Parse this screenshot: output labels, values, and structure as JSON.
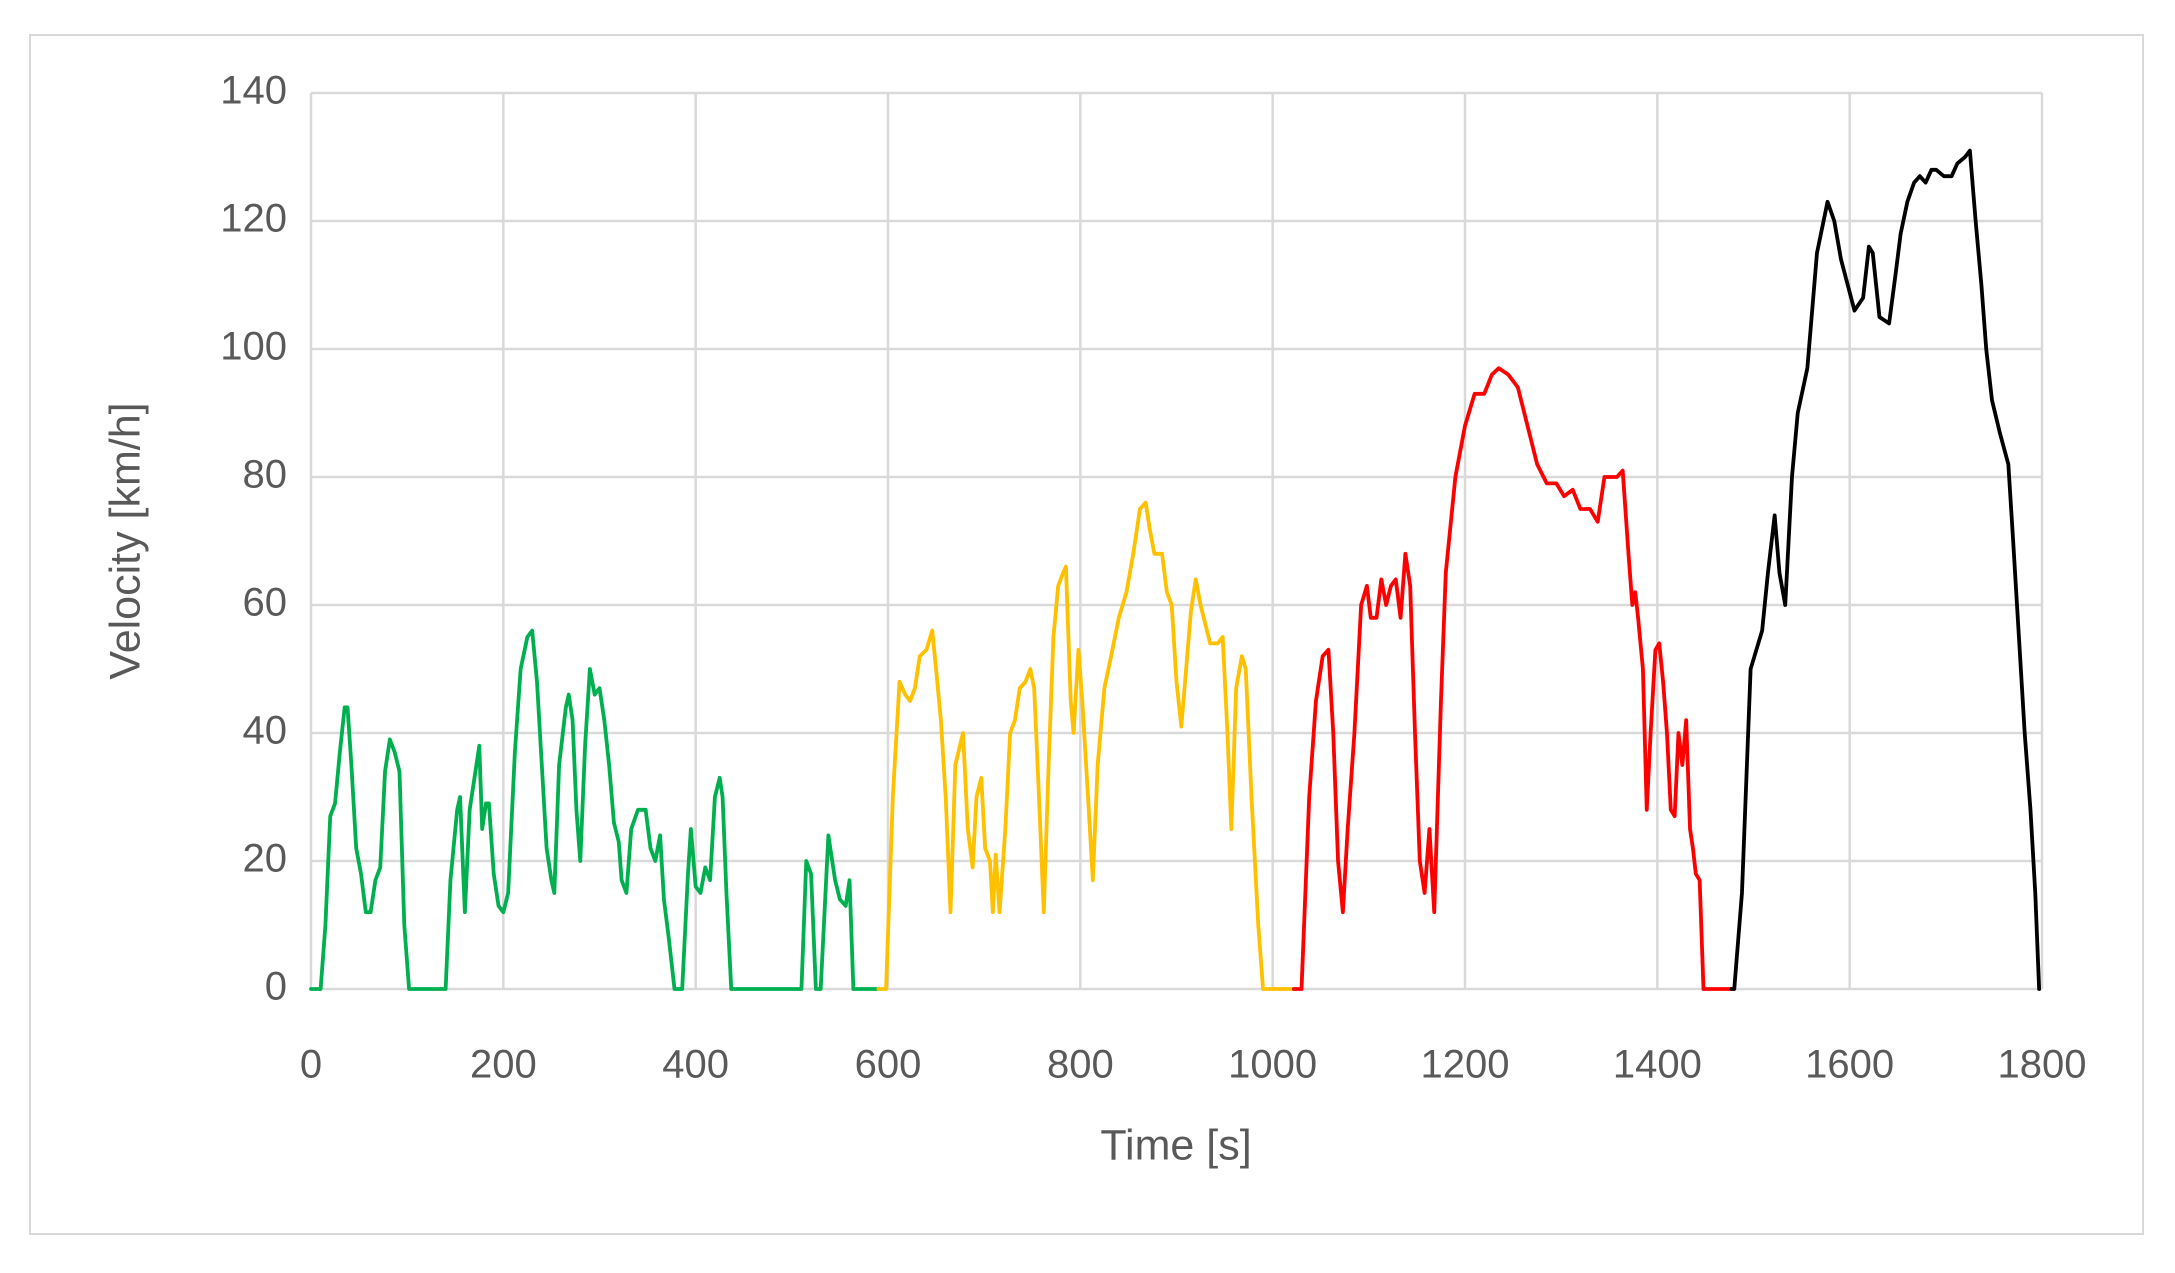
{
  "chart_data": {
    "type": "line",
    "xlabel": "Time [s]",
    "ylabel": "Velocity [km/h]",
    "xlim": [
      0,
      1800
    ],
    "xticks": [
      0,
      200,
      400,
      600,
      800,
      1000,
      1200,
      1400,
      1600,
      1800
    ],
    "ylim": [
      0,
      140
    ],
    "yticks": [
      0,
      20,
      40,
      60,
      80,
      100,
      120,
      140
    ],
    "grid": true,
    "series": [
      {
        "color": "#00b050",
        "x": [
          0,
          10,
          15,
          20,
          25,
          30,
          35,
          38,
          42,
          47,
          52,
          57,
          62,
          67,
          72,
          77,
          82,
          87,
          92,
          97,
          102,
          140,
          145,
          152,
          155,
          160,
          165,
          170,
          175,
          178,
          182,
          185,
          190,
          195,
          200,
          205,
          212,
          218,
          225,
          230,
          235,
          240,
          245,
          250,
          253,
          258,
          265,
          268,
          272,
          276,
          280,
          285,
          290,
          295,
          300,
          305,
          310,
          315,
          320,
          323,
          328,
          333,
          340,
          348,
          353,
          358,
          363,
          367,
          372,
          378,
          386,
          392,
          395,
          400,
          405,
          410,
          415,
          420,
          425,
          428,
          432,
          437,
          510,
          515,
          520,
          525,
          530,
          538,
          545,
          550,
          556,
          560,
          564,
          590
        ],
        "values": [
          0,
          0,
          10,
          27,
          29,
          37,
          44,
          44,
          35,
          22,
          18,
          12,
          12,
          17,
          19,
          34,
          39,
          37,
          34,
          10,
          0,
          0,
          17,
          28,
          30,
          12,
          28,
          33,
          38,
          25,
          29,
          29,
          18,
          13,
          12,
          15,
          37,
          50,
          55,
          56,
          48,
          35,
          22,
          17,
          15,
          35,
          44,
          46,
          42,
          28,
          20,
          38,
          50,
          46,
          47,
          42,
          35,
          26,
          23,
          17,
          15,
          25,
          28,
          28,
          22,
          20,
          24,
          14,
          8,
          0,
          0,
          18,
          25,
          16,
          15,
          19,
          17,
          30,
          33,
          30,
          15,
          0,
          0,
          20,
          18,
          0,
          0,
          24,
          17,
          14,
          13,
          17,
          0,
          0
        ]
      },
      {
        "color": "#ffc000",
        "x": [
          590,
          598,
          605,
          612,
          618,
          623,
          628,
          633,
          640,
          646,
          650,
          655,
          660,
          665,
          670,
          678,
          683,
          688,
          692,
          697,
          701,
          706,
          709,
          712,
          716,
          722,
          727,
          732,
          737,
          743,
          748,
          752,
          757,
          762,
          767,
          772,
          777,
          782,
          785,
          790,
          793,
          798,
          802,
          808,
          813,
          818,
          825,
          832,
          840,
          848,
          855,
          862,
          868,
          872,
          877,
          885,
          890,
          895,
          900,
          905,
          910,
          915,
          920,
          925,
          930,
          935,
          943,
          948,
          953,
          957,
          962,
          968,
          972,
          978,
          985,
          990,
          1022
        ],
        "values": [
          0,
          0,
          30,
          48,
          46,
          45,
          47,
          52,
          53,
          56,
          50,
          42,
          30,
          12,
          35,
          40,
          25,
          19,
          30,
          33,
          22,
          20,
          12,
          21,
          12,
          25,
          40,
          42,
          47,
          48,
          50,
          47,
          30,
          12,
          35,
          55,
          63,
          65,
          66,
          45,
          40,
          53,
          45,
          30,
          17,
          35,
          47,
          52,
          58,
          62,
          68,
          75,
          76,
          72,
          68,
          68,
          62,
          60,
          48,
          41,
          50,
          59,
          64,
          60,
          57,
          54,
          54,
          55,
          40,
          25,
          47,
          52,
          50,
          30,
          10,
          0,
          0
        ]
      },
      {
        "color": "#ff0000",
        "x": [
          1022,
          1030,
          1038,
          1045,
          1052,
          1058,
          1063,
          1068,
          1073,
          1078,
          1085,
          1092,
          1098,
          1102,
          1108,
          1113,
          1118,
          1123,
          1128,
          1133,
          1138,
          1143,
          1148,
          1153,
          1158,
          1163,
          1168,
          1175,
          1180,
          1190,
          1200,
          1210,
          1220,
          1228,
          1235,
          1245,
          1255,
          1265,
          1275,
          1285,
          1295,
          1303,
          1312,
          1320,
          1330,
          1338,
          1345,
          1352,
          1358,
          1364,
          1370,
          1374,
          1377,
          1380,
          1385,
          1389,
          1393,
          1398,
          1402,
          1406,
          1410,
          1414,
          1418,
          1422,
          1426,
          1430,
          1434,
          1437,
          1440,
          1444,
          1448,
          1477
        ],
        "values": [
          0,
          0,
          30,
          45,
          52,
          53,
          40,
          20,
          12,
          25,
          40,
          60,
          63,
          58,
          58,
          64,
          60,
          63,
          64,
          58,
          68,
          63,
          40,
          20,
          15,
          25,
          12,
          45,
          65,
          80,
          88,
          93,
          93,
          96,
          97,
          96,
          94,
          88,
          82,
          79,
          79,
          77,
          78,
          75,
          75,
          73,
          80,
          80,
          80,
          81,
          68,
          60,
          62,
          58,
          50,
          28,
          40,
          53,
          54,
          48,
          40,
          28,
          27,
          40,
          35,
          42,
          25,
          22,
          18,
          17,
          0,
          0
        ]
      },
      {
        "color": "#000000",
        "x": [
          1477,
          1480,
          1488,
          1497,
          1509,
          1515,
          1522,
          1527,
          1533,
          1540,
          1546,
          1556,
          1566,
          1577,
          1584,
          1591,
          1598,
          1605,
          1614,
          1620,
          1624,
          1631,
          1641,
          1648,
          1653,
          1660,
          1667,
          1673,
          1679,
          1685,
          1690,
          1698,
          1706,
          1712,
          1720,
          1725,
          1731,
          1737,
          1742,
          1748,
          1756,
          1765,
          1770,
          1776,
          1782,
          1788,
          1793,
          1797
        ],
        "values": [
          0,
          0,
          15,
          50,
          56,
          65,
          74,
          65,
          60,
          80,
          90,
          97,
          115,
          123,
          120,
          114,
          110,
          106,
          108,
          116,
          115,
          105,
          104,
          112,
          118,
          123,
          126,
          127,
          126,
          128,
          128,
          127,
          127,
          129,
          130,
          131,
          120,
          110,
          100,
          92,
          87,
          82,
          70,
          55,
          40,
          28,
          15,
          0
        ]
      }
    ]
  }
}
